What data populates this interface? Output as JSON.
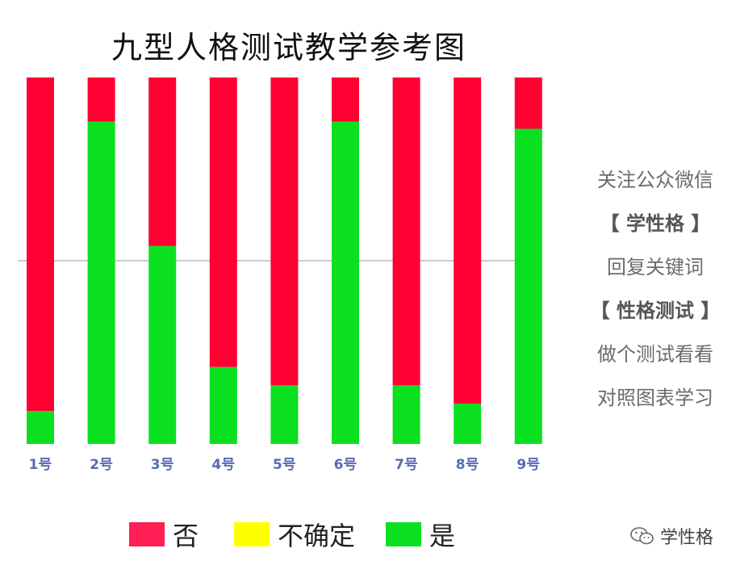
{
  "chart_data": {
    "type": "bar",
    "stacked": true,
    "percent": true,
    "title": "九型人格测试教学参考图",
    "categories": [
      "1号",
      "2号",
      "3号",
      "4号",
      "5号",
      "6号",
      "7号",
      "8号",
      "9号"
    ],
    "series": [
      {
        "name": "是",
        "color": "#0be020",
        "values": [
          9,
          88,
          54,
          21,
          16,
          88,
          16,
          11,
          86
        ]
      },
      {
        "name": "不确定",
        "color": "#ffff00",
        "values": [
          0,
          0,
          0,
          0,
          0,
          0,
          0,
          0,
          0
        ]
      },
      {
        "name": "否",
        "color": "#ff0033",
        "values": [
          91,
          12,
          46,
          79,
          84,
          12,
          84,
          89,
          14
        ]
      }
    ],
    "ylim": [
      0,
      100
    ],
    "reference_line": 50,
    "grid": false,
    "legend_position": "bottom"
  },
  "side_panel": {
    "lines": [
      "关注公众微信",
      "【 学性格 】",
      "回复关键词",
      "【 性格测试 】",
      "做个测试看看",
      "对照图表学习"
    ]
  },
  "legend": {
    "items": [
      {
        "label": "否",
        "color": "#ff1f55"
      },
      {
        "label": "不确定",
        "color": "#ffff00"
      },
      {
        "label": "是",
        "color": "#0be020"
      }
    ]
  },
  "watermark": {
    "text": "学性格",
    "icon": "wechat-icon"
  }
}
